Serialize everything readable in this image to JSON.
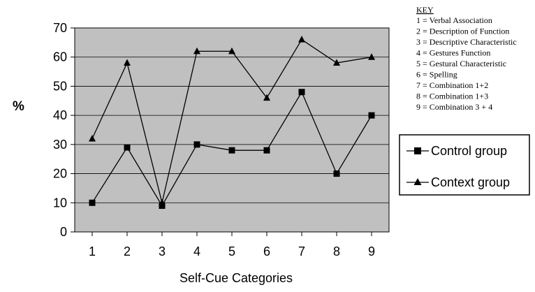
{
  "chart_data": {
    "type": "line",
    "xlabel": "Self-Cue Categories",
    "ylabel": "%",
    "x": [
      1,
      2,
      3,
      4,
      5,
      6,
      7,
      8,
      9
    ],
    "x_tick_labels": [
      "1",
      "2",
      "3",
      "4",
      "5",
      "6",
      "7",
      "8",
      "9"
    ],
    "ylim": [
      0,
      70
    ],
    "y_ticks": [
      0,
      10,
      20,
      30,
      40,
      50,
      60,
      70
    ],
    "y_tick_labels": [
      "0",
      "10",
      "20",
      "30",
      "40",
      "50",
      "60",
      "70"
    ],
    "grid": true,
    "plot_background": "#c0c0c0",
    "series": [
      {
        "name": "Control group",
        "marker": "square",
        "color": "#000000",
        "values": [
          10,
          29,
          9,
          30,
          28,
          28,
          48,
          20,
          40
        ]
      },
      {
        "name": "Context group",
        "marker": "triangle",
        "color": "#000000",
        "values": [
          32,
          58,
          10,
          62,
          62,
          46,
          66,
          58,
          60
        ]
      }
    ],
    "legend_placement": "right",
    "key": {
      "title": "KEY",
      "items": [
        "1 = Verbal Association",
        "2 = Description of Function",
        "3 = Descriptive Characteristic",
        "4 = Gestures Function",
        "5 = Gestural Characteristic",
        "6 = Spelling",
        "7 = Combination 1+2",
        "8 = Combination 1+3",
        "9 = Combination 3 + 4"
      ]
    }
  }
}
